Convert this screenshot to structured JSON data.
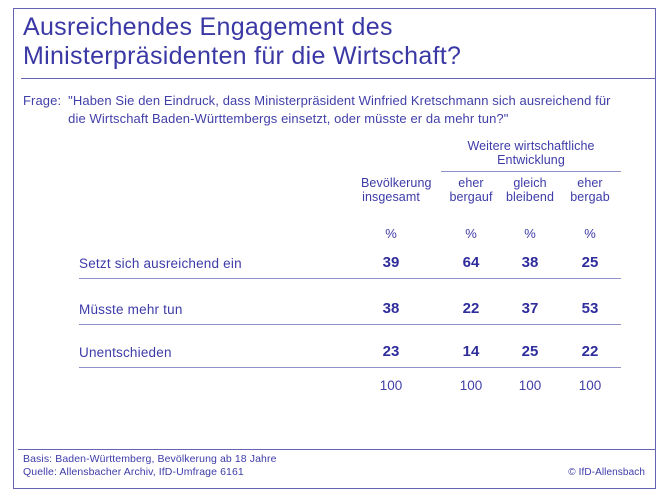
{
  "accent_color": "#3a38a4",
  "rule_color": "#8f91c7",
  "title": "Ausreichendes Engagement des Ministerpräsidenten für die Wirtschaft?",
  "question": {
    "label": "Frage:",
    "text": "\"Haben Sie den Eindruck, dass Ministerpräsident Winfried Kretschmann sich ausreichend für die Wirtschaft Baden-Württembergs einsetzt, oder müsste er da mehr tun?\""
  },
  "chart_data": {
    "type": "table",
    "title": "Ausreichendes Engagement des Ministerpräsidenten für die Wirtschaft?",
    "column_group": {
      "label": "Weitere wirtschaftliche Entwicklung",
      "columns": [
        "eher bergauf",
        "gleich bleibend",
        "eher bergab"
      ]
    },
    "columns": [
      "Bevölkerung insgesamt",
      "eher bergauf",
      "gleich bleibend",
      "eher bergab"
    ],
    "unit": "%",
    "rows": [
      {
        "label": "Setzt sich ausreichend ein",
        "values": [
          39,
          64,
          38,
          25
        ]
      },
      {
        "label": "Müsste mehr tun",
        "values": [
          38,
          22,
          37,
          53
        ]
      },
      {
        "label": "Unentschieden",
        "values": [
          23,
          14,
          25,
          22
        ]
      }
    ],
    "totals": [
      100,
      100,
      100,
      100
    ]
  },
  "table": {
    "group_header": "Weitere wirtschaftliche Entwicklung",
    "columns": [
      {
        "line1": "Bevölkerung",
        "line2": "insgesamt"
      },
      {
        "line1": "eher",
        "line2": "bergauf"
      },
      {
        "line1": "gleich",
        "line2": "bleibend"
      },
      {
        "line1": "eher",
        "line2": "bergab"
      }
    ]
  },
  "footer": {
    "basis": "Basis: Baden-Württemberg, Bevölkerung ab 18 Jahre",
    "quelle": "Quelle: Allensbacher Archiv, IfD-Umfrage 6161",
    "copyright": "© IfD-Allensbach"
  }
}
